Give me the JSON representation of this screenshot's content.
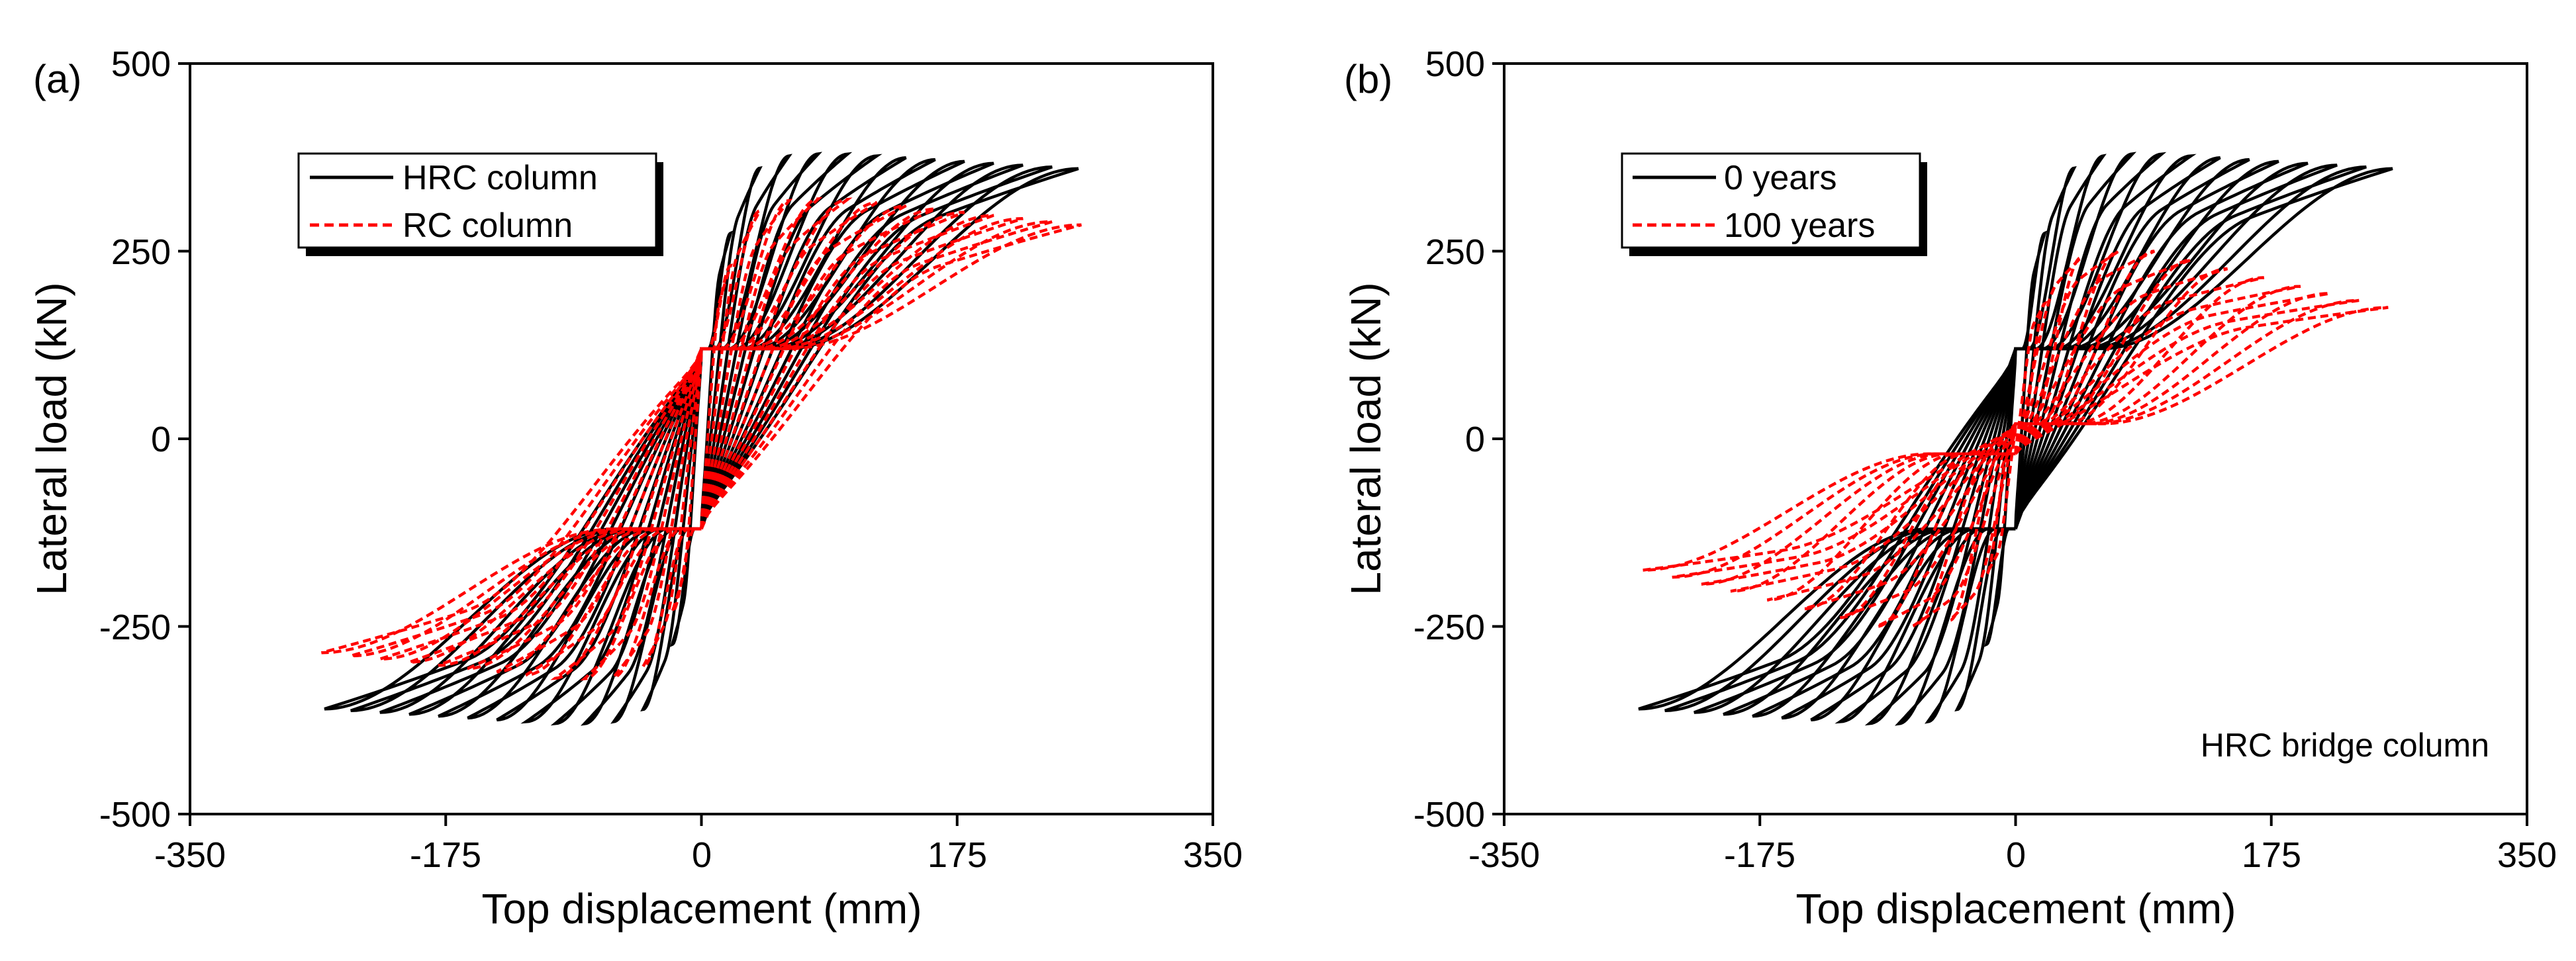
{
  "chart_data": [
    {
      "panel": "(a)",
      "type": "line",
      "xlabel": "Top displacement (mm)",
      "ylabel": "Lateral load (kN)",
      "xlim": [
        -350,
        350
      ],
      "ylim": [
        -500,
        500
      ],
      "xticks": [
        "-350",
        "-175",
        "0",
        "175",
        "350"
      ],
      "yticks": [
        "-500",
        "-250",
        "0",
        "250",
        "500"
      ],
      "legend_position": "top-left",
      "annotation": "",
      "series": [
        {
          "name": "HRC column",
          "color": "#000000",
          "style": "solid",
          "peak_load": 380,
          "residual_load": 120,
          "cycle_amplitudes": [
            20,
            40,
            60,
            80,
            100,
            120,
            140,
            160,
            180,
            200,
            220,
            240,
            258
          ],
          "positive_envelope_end": [
            258,
            360
          ],
          "negative_envelope_end": [
            -262,
            -360
          ]
        },
        {
          "name": "RC column",
          "color": "#ff0000",
          "style": "dashed",
          "peak_load": 320,
          "residual_load": 120,
          "cycle_amplitudes": [
            20,
            40,
            60,
            80,
            100,
            120,
            140,
            160,
            180,
            200,
            220,
            240,
            260
          ],
          "positive_envelope_end": [
            260,
            285
          ],
          "negative_envelope_end": [
            -262,
            -285
          ]
        }
      ]
    },
    {
      "panel": "(b)",
      "type": "line",
      "xlabel": "Top displacement (mm)",
      "ylabel": "Lateral load (kN)",
      "xlim": [
        -350,
        350
      ],
      "ylim": [
        -500,
        500
      ],
      "xticks": [
        "-350",
        "-175",
        "0",
        "175",
        "350"
      ],
      "yticks": [
        "-500",
        "-250",
        "0",
        "250",
        "500"
      ],
      "legend_position": "top-left",
      "annotation": "HRC bridge column",
      "series": [
        {
          "name": "0 years",
          "color": "#000000",
          "style": "solid",
          "peak_load": 380,
          "residual_load": 120,
          "cycle_amplitudes": [
            20,
            40,
            60,
            80,
            100,
            120,
            140,
            160,
            180,
            200,
            220,
            240,
            258
          ],
          "positive_envelope_end": [
            258,
            360
          ],
          "negative_envelope_end": [
            -262,
            -360
          ]
        },
        {
          "name": "100 years",
          "color": "#ff0000",
          "style": "dashed",
          "peak_load": 250,
          "residual_load": 20,
          "cycle_amplitudes": [
            20,
            45,
            70,
            95,
            120,
            145,
            170,
            195,
            215,
            235,
            255
          ],
          "positive_envelope_end": [
            255,
            175
          ],
          "negative_envelope_end": [
            -262,
            -175
          ]
        }
      ]
    }
  ]
}
